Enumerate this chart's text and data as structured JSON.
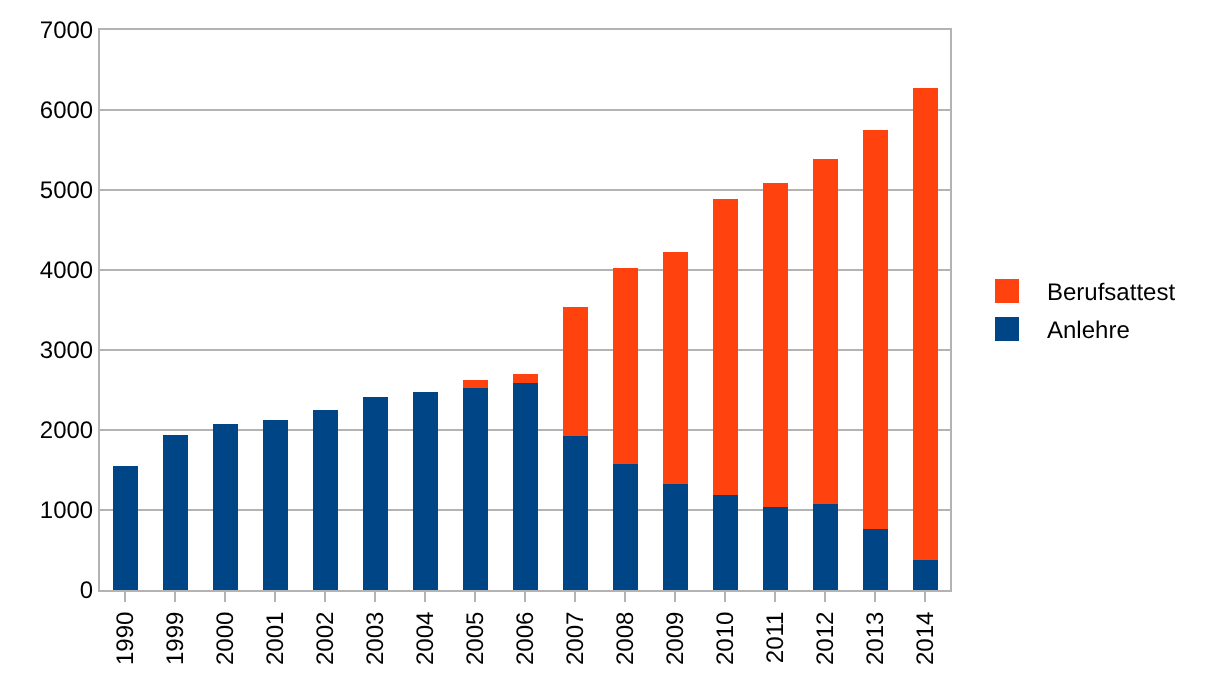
{
  "chart_data": {
    "type": "bar",
    "stacked": true,
    "categories": [
      "1990",
      "1999",
      "2000",
      "2001",
      "2002",
      "2003",
      "2004",
      "2005",
      "2006",
      "2007",
      "2008",
      "2009",
      "2010",
      "2011",
      "2012",
      "2013",
      "2014"
    ],
    "series": [
      {
        "name": "Anlehre",
        "color": "#004586",
        "values": [
          1550,
          1940,
          2080,
          2130,
          2250,
          2410,
          2480,
          2530,
          2590,
          1930,
          1580,
          1320,
          1190,
          1040,
          1080,
          760,
          380
        ]
      },
      {
        "name": "Berufsattest",
        "color": "#ff420e",
        "values": [
          null,
          null,
          null,
          null,
          null,
          null,
          null,
          100,
          110,
          1610,
          2440,
          2910,
          3700,
          4050,
          4310,
          4990,
          5890
        ]
      }
    ],
    "ylim": [
      0,
      7000
    ],
    "yticks": [
      0,
      1000,
      2000,
      3000,
      4000,
      5000,
      6000,
      7000
    ],
    "grid": "y",
    "legend": "right"
  }
}
